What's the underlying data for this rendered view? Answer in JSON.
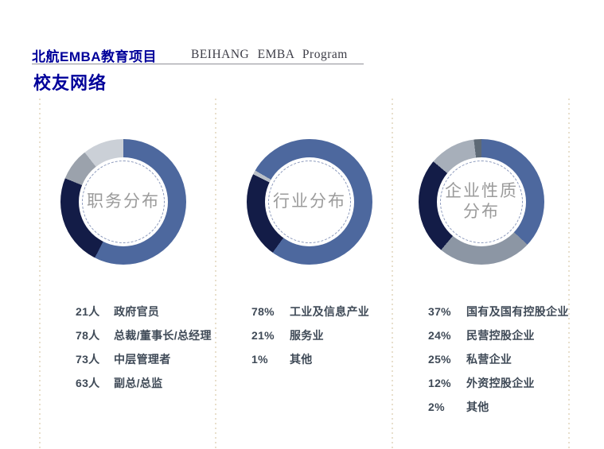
{
  "header": {
    "brand_cn": "北航EMBA教育项目",
    "brand_en": "BEIHANG  EMBA  Program",
    "page_title": "校友网络"
  },
  "colors": {
    "brand_blue": "#00009a",
    "blue": "#4d689e",
    "navy": "#131c47",
    "gray": "#9ba2ac",
    "light_gray": "#cbd0d7",
    "slate": "#8c96a4",
    "pale_slate": "#a7afba",
    "dark_slate": "#5e6a76",
    "sliver_gray": "#b9bfc7",
    "legend_text": "#3f4a57",
    "center_label": "#9b9b9b",
    "separator_dots": "#e8dfcc"
  },
  "chart_data": [
    {
      "type": "pie",
      "title": "职务分布",
      "center_label": "职务分布",
      "unit": "人",
      "categories": [
        "政府官员",
        "总裁/董事长/总经理",
        "中层管理者",
        "副总/总监"
      ],
      "values": [
        21,
        78,
        73,
        63
      ],
      "value_labels": [
        "21人",
        "78人",
        "73人",
        "63人"
      ],
      "legend_position": "below",
      "segments": [
        {
          "name": "blue",
          "color": "#4d689e",
          "from": 0,
          "to": 207
        },
        {
          "name": "navy",
          "color": "#131c47",
          "from": 207,
          "to": 292
        },
        {
          "name": "gray",
          "color": "#9ba2ac",
          "from": 292,
          "to": 322
        },
        {
          "name": "light-gray",
          "color": "#cbd0d7",
          "from": 322,
          "to": 360
        }
      ]
    },
    {
      "type": "pie",
      "title": "行业分布",
      "center_label": "行业分布",
      "unit": "%",
      "categories": [
        "工业及信息产业",
        "服务业",
        "其他"
      ],
      "values": [
        78,
        21,
        1
      ],
      "value_labels": [
        "78%",
        "21%",
        "1%"
      ],
      "legend_position": "below",
      "segments": [
        {
          "name": "blue",
          "color": "#4d689e",
          "from": 0,
          "to": 216
        },
        {
          "name": "navy",
          "color": "#131c47",
          "from": 216,
          "to": 296
        },
        {
          "name": "sliver-gray",
          "color": "#b9bfc7",
          "from": 296,
          "to": 300
        },
        {
          "name": "blue-wrap",
          "color": "#4d689e",
          "from": 300,
          "to": 360
        }
      ]
    },
    {
      "type": "pie",
      "title": "企业性质分布",
      "center_label": "企业性质\n分布",
      "unit": "%",
      "categories": [
        "国有及国有控股企业",
        "民营控股企业",
        "私营企业",
        "外资控股企业",
        "其他"
      ],
      "values": [
        37,
        24,
        25,
        12,
        2
      ],
      "value_labels": [
        "37%",
        "24%",
        "25%",
        "12%",
        "2%"
      ],
      "legend_position": "below",
      "segments": [
        {
          "name": "blue",
          "color": "#4d689e",
          "from": 0,
          "to": 133
        },
        {
          "name": "slate",
          "color": "#8c96a4",
          "from": 133,
          "to": 220
        },
        {
          "name": "navy",
          "color": "#131c47",
          "from": 220,
          "to": 310
        },
        {
          "name": "pale-slate",
          "color": "#a7afba",
          "from": 310,
          "to": 353
        },
        {
          "name": "dark-slate",
          "color": "#5e6a76",
          "from": 353,
          "to": 360
        }
      ]
    }
  ]
}
